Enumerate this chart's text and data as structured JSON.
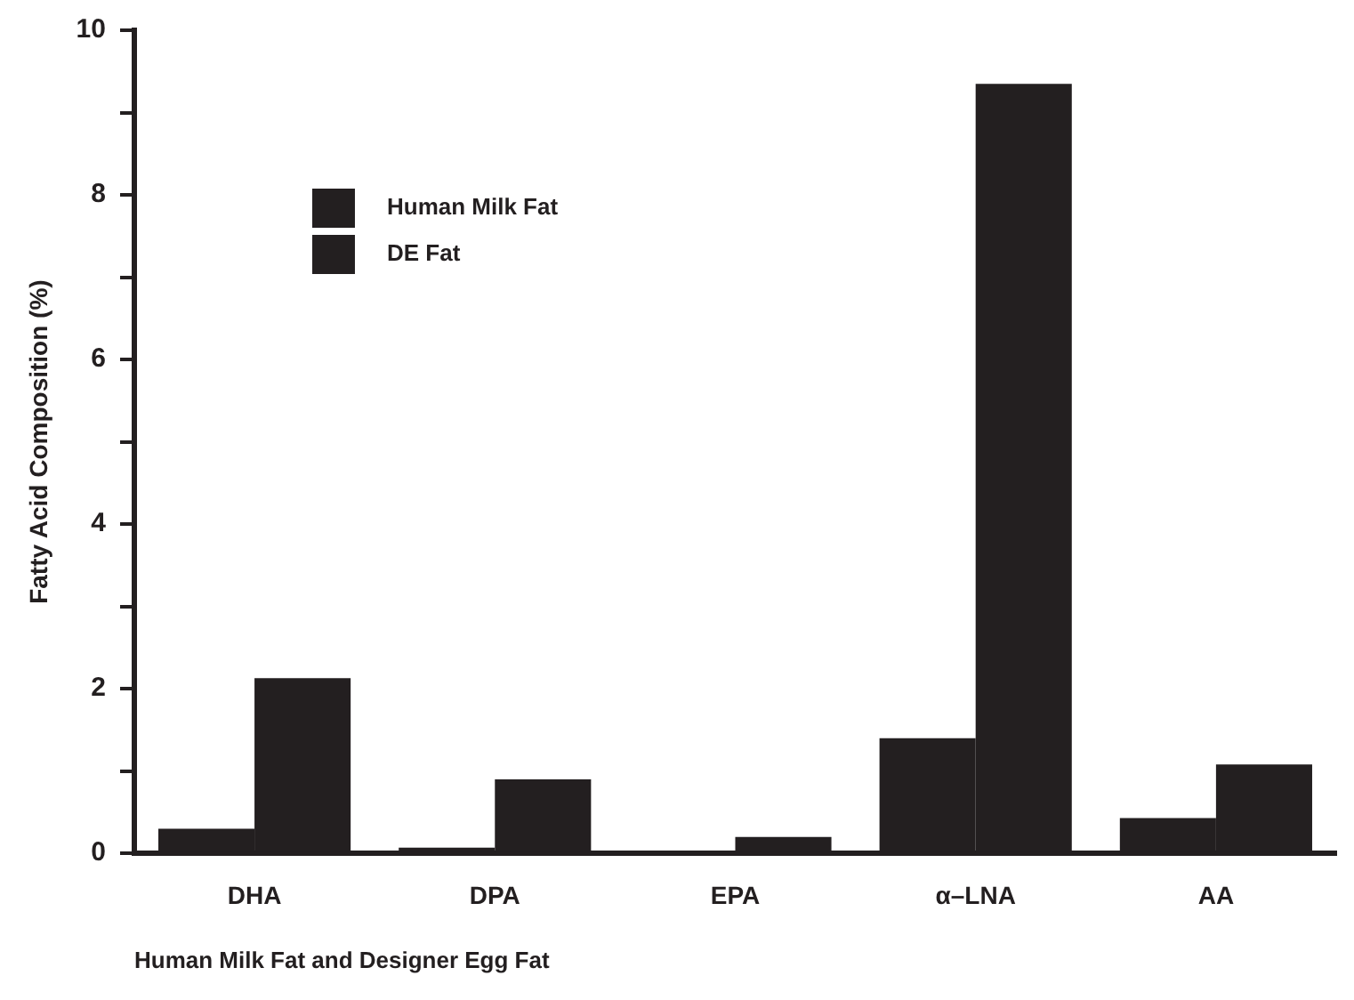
{
  "chart_data": {
    "type": "bar",
    "xlabel": "Human Milk Fat and Designer Egg Fat",
    "ylabel": "Fatty Acid Composition (%)",
    "categories": [
      "DHA",
      "DPA",
      "EPA",
      "α–LNA",
      "AA"
    ],
    "series": [
      {
        "name": "Human Milk Fat",
        "color": "#231f20",
        "values": [
          0.3,
          0.07,
          0,
          1.4,
          0.43
        ]
      },
      {
        "name": "DE Fat",
        "color": "#231f20",
        "values": [
          2.13,
          0.9,
          0.2,
          9.35,
          1.08
        ]
      }
    ],
    "ylim": [
      0,
      10
    ],
    "yticks": [
      0,
      {
        "value": 1,
        "label": null
      },
      2,
      {
        "value": 3,
        "label": null
      },
      4,
      {
        "value": 5,
        "label": null
      },
      6,
      {
        "value": 7,
        "label": null
      },
      8,
      {
        "value": 9,
        "label": null
      },
      10
    ],
    "grid": false,
    "legend": "top left"
  }
}
